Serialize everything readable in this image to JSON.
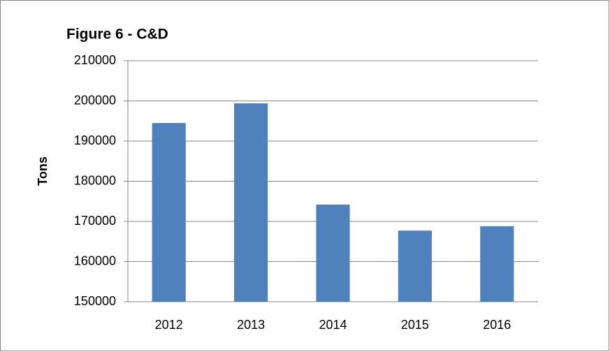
{
  "chart_data": {
    "type": "bar",
    "title": "Figure 6 - C&D",
    "y_label": "Tons",
    "categories": [
      "2012",
      "2013",
      "2014",
      "2015",
      "2016"
    ],
    "values": [
      194500,
      199400,
      174200,
      167700,
      168800
    ],
    "color": "#4f81bd",
    "ylim": [
      150000,
      210000
    ],
    "yticks": [
      150000,
      160000,
      170000,
      180000,
      190000,
      200000,
      210000
    ],
    "grid": true
  }
}
